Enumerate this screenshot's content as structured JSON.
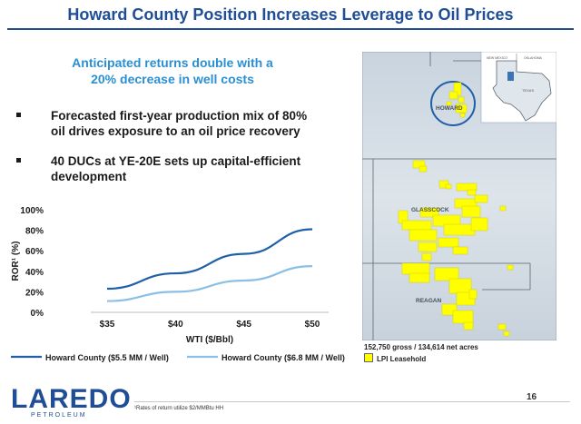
{
  "title": "Howard County Position Increases Leverage to Oil Prices",
  "subhead": {
    "line1": "Anticipated returns double with a",
    "line2": "20% decrease in well costs"
  },
  "bullets": [
    {
      "line1": "Forecasted first-year production mix of 80%",
      "line2": "oil drives exposure to an oil price recovery"
    },
    {
      "line1": "40 DUCs at YE-20E sets up capital-efficient",
      "line2": "development"
    }
  ],
  "chart_data": {
    "type": "line",
    "x": [
      35,
      40,
      45,
      50
    ],
    "x_tick_labels": [
      "$35",
      "$40",
      "$45",
      "$50"
    ],
    "y_tick_labels": [
      "0%",
      "20%",
      "40%",
      "60%",
      "80%",
      "100%"
    ],
    "ylim": [
      0,
      100
    ],
    "xlabel": "WTI ($/Bbl)",
    "ylabel": "ROR¹ (%)",
    "series": [
      {
        "name": "Howard County ($5.5 MM / Well)",
        "color": "#1f5fa8",
        "values": [
          23,
          38,
          57,
          81
        ]
      },
      {
        "name": "Howard County ($6.8 MM / Well)",
        "color": "#8cbfe6",
        "values": [
          11,
          20,
          31,
          45
        ]
      }
    ]
  },
  "map": {
    "labels": {
      "howard": "HOWARD",
      "glasscock": "GLASSCOCK",
      "reagan": "REAGAN"
    },
    "inset_labels": {
      "nm": "NEW MEXICO",
      "ok": "OKLAHOMA",
      "tx": "TEXAS"
    },
    "acreage": "152,750 gross / 134,614 net acres",
    "legend": "LPI Leasehold",
    "colors": {
      "leasehold": "#ffff00",
      "circle": "#1f5fa8"
    }
  },
  "logo": {
    "word": "LAREDO",
    "sub": "PETROLEUM"
  },
  "footnote": "¹Rates of return utilize $2/MMBtu HH",
  "page_number": "16"
}
